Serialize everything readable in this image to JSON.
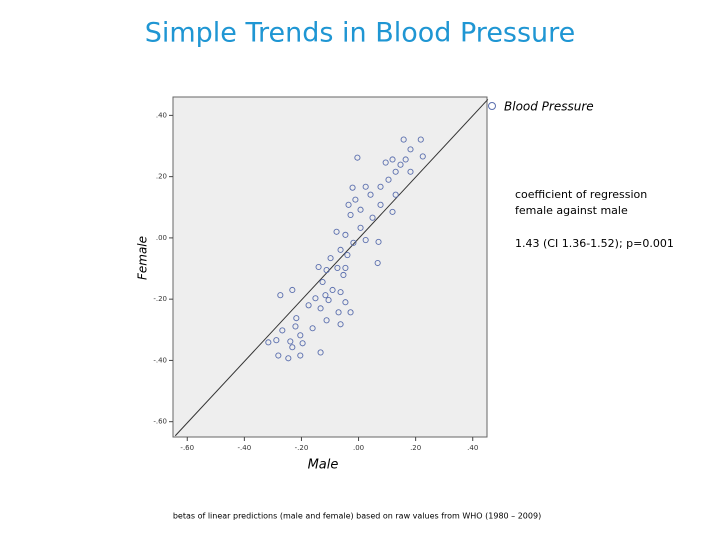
{
  "chart_data": {
    "type": "scatter",
    "title": "Simple Trends in Blood Pressure",
    "x_label": "Male",
    "y_label": "Female",
    "legend_position": "top-right",
    "annotations": [
      "coefficient of regression",
      "female against male",
      "1.43 (CI 1.36-1.52); p=0.001"
    ],
    "footnote": "betas of linear predictions (male and female) based on raw values from WHO (1980 – 2009)",
    "xlim": [
      -0.65,
      0.45
    ],
    "ylim": [
      -0.65,
      0.46
    ],
    "xticks": [
      {
        "value": -0.6,
        "label": "-.60"
      },
      {
        "value": -0.4,
        "label": "-.40"
      },
      {
        "value": -0.2,
        "label": "-.20"
      },
      {
        "value": 0,
        "label": ".00"
      },
      {
        "value": 0.2,
        "label": ".20"
      },
      {
        "value": 0.4,
        "label": ".40"
      }
    ],
    "yticks": [
      {
        "value": 0.4,
        "label": ".40"
      },
      {
        "value": 0.2,
        "label": ".20"
      },
      {
        "value": 0,
        "label": ".00"
      },
      {
        "value": -0.2,
        "label": "-.20"
      },
      {
        "value": -0.4,
        "label": "-.40"
      },
      {
        "value": -0.6,
        "label": "-.60"
      }
    ],
    "fit_line": {
      "x": [
        -0.642,
        0.453
      ],
      "y": [
        -0.646,
        0.452
      ],
      "color": "#333333"
    },
    "x": [
      0.158,
      0.218,
      0.182,
      0.165,
      0.225,
      0.119,
      0.147,
      0.095,
      -0.004,
      0.13,
      0.182,
      0.105,
      0.077,
      0.025,
      -0.021,
      0.042,
      0.13,
      -0.011,
      0.007,
      -0.035,
      0.077,
      0.119,
      0.049,
      -0.028,
      0.007,
      -0.046,
      -0.077,
      0.025,
      -0.018,
      0.07,
      -0.063,
      -0.039,
      -0.098,
      -0.14,
      -0.074,
      -0.046,
      0.067,
      -0.112,
      -0.053,
      -0.126,
      -0.091,
      -0.116,
      -0.063,
      -0.274,
      -0.232,
      -0.151,
      -0.105,
      -0.046,
      -0.175,
      -0.133,
      -0.07,
      -0.028,
      -0.218,
      -0.112,
      -0.221,
      -0.161,
      -0.063,
      -0.267,
      -0.204,
      -0.316,
      -0.288,
      -0.239,
      -0.196,
      -0.133,
      -0.246,
      -0.281,
      -0.204,
      -0.232
    ],
    "series": [
      {
        "name": "Blood Pressure",
        "color": "#5b6fae",
        "values": [
          0.321,
          0.321,
          0.289,
          0.256,
          0.266,
          0.256,
          0.239,
          0.246,
          0.262,
          0.216,
          0.216,
          0.19,
          0.167,
          0.167,
          0.164,
          0.141,
          0.141,
          0.125,
          0.092,
          0.108,
          0.108,
          0.085,
          0.066,
          0.075,
          0.033,
          0.01,
          0.02,
          -0.007,
          -0.016,
          -0.013,
          -0.039,
          -0.056,
          -0.066,
          -0.095,
          -0.098,
          -0.098,
          -0.082,
          -0.105,
          -0.121,
          -0.144,
          -0.17,
          -0.187,
          -0.177,
          -0.187,
          -0.17,
          -0.197,
          -0.203,
          -0.21,
          -0.22,
          -0.23,
          -0.243,
          -0.243,
          -0.262,
          -0.269,
          -0.289,
          -0.295,
          -0.282,
          -0.302,
          -0.318,
          -0.341,
          -0.334,
          -0.338,
          -0.344,
          -0.374,
          -0.393,
          -0.384,
          -0.384,
          -0.357
        ]
      }
    ]
  }
}
